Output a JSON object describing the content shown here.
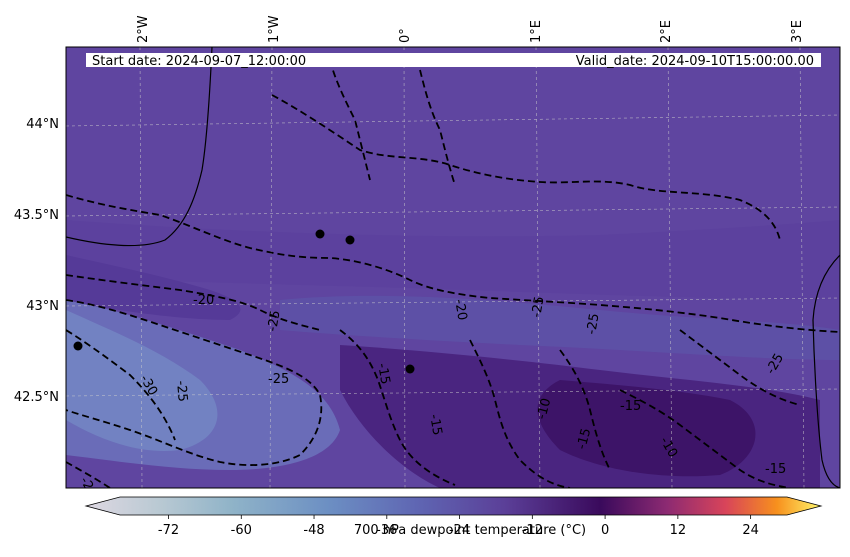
{
  "map": {
    "start_date": "Start date: 2024-09-07_12:00:00",
    "valid_date": "Valid_date: 2024-09-10T15:00:00.00",
    "lon_labels": [
      "2°W",
      "1°W",
      "0°",
      "1°E",
      "2°E",
      "3°E"
    ],
    "lat_labels": [
      "44°N",
      "43.5°N",
      "43°N",
      "42.5°N"
    ],
    "contour_labels": [
      "-20",
      "-25",
      "-25",
      "-30",
      "-25",
      "-15",
      "-15",
      "-10",
      "-15",
      "-10",
      "-15",
      "-20",
      "-25",
      "-25",
      "-25",
      "-15",
      "-20"
    ],
    "markers": [
      "city-marker-1",
      "city-marker-2",
      "city-marker-3"
    ]
  },
  "colorbar": {
    "label": "700 hPa dewpoint temperature (°C)",
    "ticks": [
      "-72",
      "-60",
      "-48",
      "-36",
      "-24",
      "-12",
      "0",
      "12",
      "24"
    ],
    "tick_values": [
      -72,
      -60,
      -48,
      -36,
      -24,
      -12,
      0,
      12,
      24
    ],
    "range": [
      -80,
      30
    ],
    "colors": [
      "#ded8e2",
      "#b9c9d3",
      "#8fb3c8",
      "#6c8fc3",
      "#5f66b3",
      "#5b3f98",
      "#3a0a5c",
      "#8c2a72",
      "#d8445a",
      "#f7901d",
      "#fff66c"
    ]
  }
}
